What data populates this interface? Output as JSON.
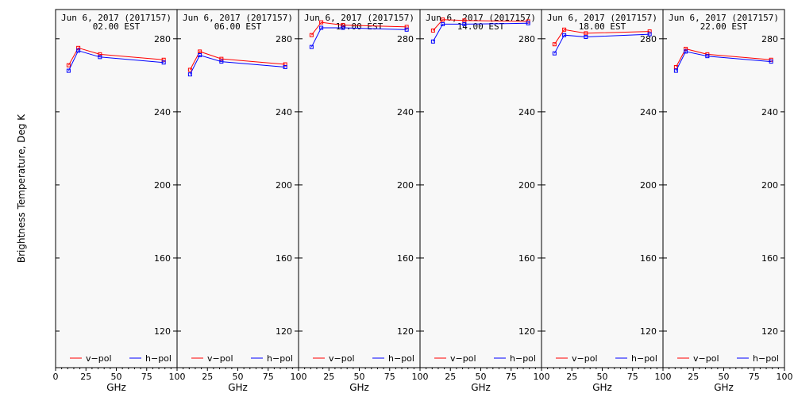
{
  "chart_data": {
    "type": "line",
    "ylabel": "Brightness Temperature, Deg K",
    "xlabel": "GHz",
    "xlim": [
      0,
      100
    ],
    "ylim": [
      100,
      296
    ],
    "xticks": [
      0,
      25,
      50,
      75,
      100
    ],
    "xtick_labels": [
      "0",
      "25",
      "50",
      "75",
      "100"
    ],
    "yticks": [
      120,
      160,
      200,
      240,
      280
    ],
    "legend": [
      {
        "label": "v−pol",
        "color": "#ff0000"
      },
      {
        "label": "h−pol",
        "color": "#0000ff"
      }
    ],
    "x": [
      10.7,
      18.7,
      36.5,
      89.0
    ],
    "panels": [
      {
        "title_line1": "Jun  6, 2017 (2017157)",
        "title_line2": "02.00 EST",
        "series": [
          {
            "name": "v−pol",
            "color": "#ff0000",
            "values": [
              265.5,
              275.0,
              271.5,
              268.5
            ]
          },
          {
            "name": "h−pol",
            "color": "#0000ff",
            "values": [
              262.5,
              273.5,
              270.0,
              267.0
            ]
          }
        ]
      },
      {
        "title_line1": "Jun  6, 2017 (2017157)",
        "title_line2": "06.00 EST",
        "series": [
          {
            "name": "v−pol",
            "color": "#ff0000",
            "values": [
              263.0,
              273.0,
              269.0,
              266.0
            ]
          },
          {
            "name": "h−pol",
            "color": "#0000ff",
            "values": [
              260.5,
              271.0,
              267.5,
              264.5
            ]
          }
        ]
      },
      {
        "title_line1": "Jun  6, 2017 (2017157)",
        "title_line2": "10.00 EST",
        "series": [
          {
            "name": "v−pol",
            "color": "#ff0000",
            "values": [
              282.0,
              289.0,
              287.5,
              286.5
            ]
          },
          {
            "name": "h−pol",
            "color": "#0000ff",
            "values": [
              275.5,
              286.0,
              286.0,
              285.0
            ]
          }
        ]
      },
      {
        "title_line1": "Jun  6, 2017 (2017157)",
        "title_line2": "14.00 EST",
        "series": [
          {
            "name": "v−pol",
            "color": "#ff0000",
            "values": [
              284.5,
              290.5,
              290.0,
              289.5
            ]
          },
          {
            "name": "h−pol",
            "color": "#0000ff",
            "values": [
              278.5,
              288.0,
              288.0,
              288.5
            ]
          }
        ]
      },
      {
        "title_line1": "Jun  6, 2017 (2017157)",
        "title_line2": "18.00 EST",
        "series": [
          {
            "name": "v−pol",
            "color": "#ff0000",
            "values": [
              277.0,
              285.0,
              283.0,
              284.0
            ]
          },
          {
            "name": "h−pol",
            "color": "#0000ff",
            "values": [
              272.0,
              282.0,
              281.0,
              282.5
            ]
          }
        ]
      },
      {
        "title_line1": "Jun  6, 2017 (2017157)",
        "title_line2": "22.00 EST",
        "series": [
          {
            "name": "v−pol",
            "color": "#ff0000",
            "values": [
              264.5,
              274.5,
              271.5,
              268.5
            ]
          },
          {
            "name": "h−pol",
            "color": "#0000ff",
            "values": [
              262.5,
              273.0,
              270.5,
              267.5
            ]
          }
        ]
      }
    ]
  }
}
